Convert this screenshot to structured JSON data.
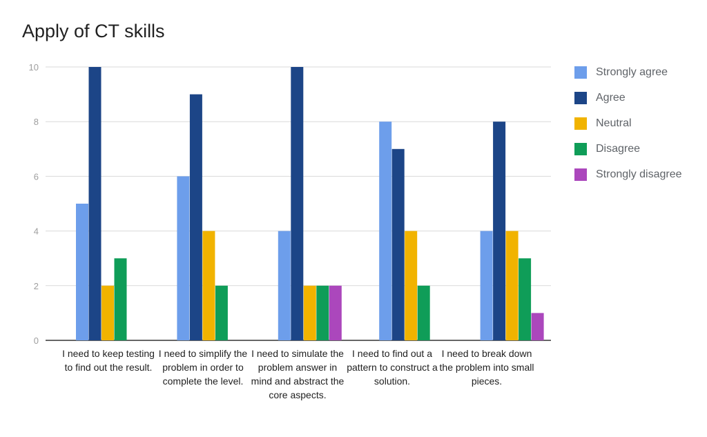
{
  "chart_data": {
    "type": "bar",
    "title": "Apply of CT skills",
    "xlabel": "",
    "ylabel": "",
    "ylim": [
      0,
      10
    ],
    "yticks": [
      0,
      2,
      4,
      6,
      8,
      10
    ],
    "grid": true,
    "legend_position": "right",
    "categories": [
      "I need to keep testing to find out the result.",
      "I need to simplify the problem in order to complete the level.",
      "I need to simulate the problem answer in mind and abstract the core aspects.",
      "I need to find out a pattern to construct a solution.",
      "I need to break down the problem into small pieces."
    ],
    "series": [
      {
        "name": "Strongly agree",
        "color": "#6d9eeb",
        "values": [
          5,
          6,
          4,
          8,
          4
        ]
      },
      {
        "name": "Agree",
        "color": "#1c4587",
        "values": [
          10,
          9,
          10,
          7,
          8
        ]
      },
      {
        "name": "Neutral",
        "color": "#f1b300",
        "values": [
          2,
          4,
          2,
          4,
          4
        ]
      },
      {
        "name": "Disagree",
        "color": "#0f9d58",
        "values": [
          3,
          2,
          2,
          2,
          3
        ]
      },
      {
        "name": "Strongly disagree",
        "color": "#ab47bc",
        "values": [
          0,
          0,
          2,
          0,
          1
        ]
      }
    ]
  }
}
